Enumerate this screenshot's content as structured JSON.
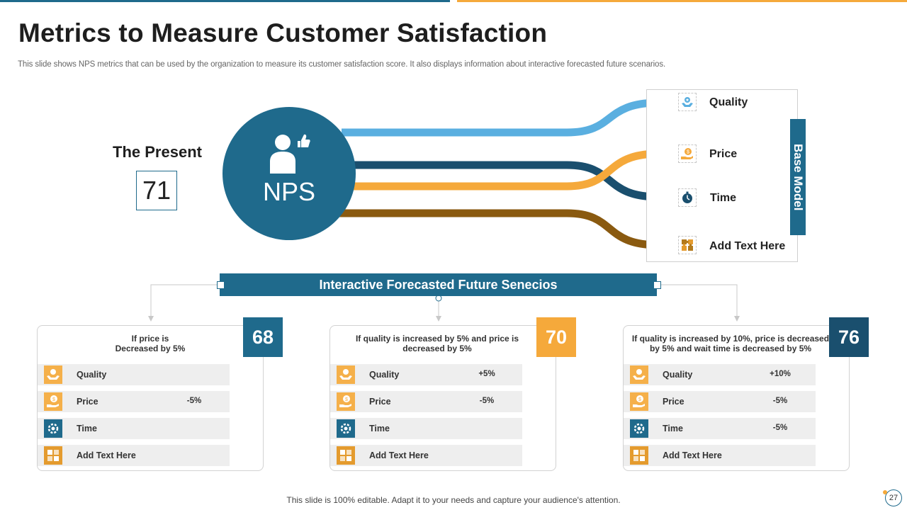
{
  "title": "Metrics to Measure Customer Satisfaction",
  "subtitle": "This slide shows NPS metrics that can be used by the organization to measure its customer satisfaction score. It also displays information about interactive forecasted future scenarios.",
  "present": {
    "label": "The Present",
    "value": "71"
  },
  "nps": {
    "label": "NPS"
  },
  "base_model": {
    "title": "Base Model",
    "items": [
      {
        "label": "Quality",
        "icon": "quality-icon",
        "color": "#5aafe0"
      },
      {
        "label": "Price",
        "icon": "price-icon",
        "color": "#f5a93b"
      },
      {
        "label": "Time",
        "icon": "time-icon",
        "color": "#1a4f6e"
      },
      {
        "label": "Add  Text Here",
        "icon": "puzzle-icon",
        "color": "#8a5a10"
      }
    ]
  },
  "forecast_title": "Interactive Forecasted Future Senecios",
  "scenarios": [
    {
      "condition": "If price is\nDecreased by 5%",
      "score": "68",
      "score_color": "#1f6a8c",
      "rows": [
        {
          "label": "Quality",
          "value": ""
        },
        {
          "label": "Price",
          "value": "-5%"
        },
        {
          "label": "Time",
          "value": ""
        },
        {
          "label": "Add  Text Here",
          "value": ""
        }
      ]
    },
    {
      "condition": "If quality  is increased by  5%  and price is\ndecreased by 5%",
      "score": "70",
      "score_color": "#f5a93b",
      "rows": [
        {
          "label": "Quality",
          "value": "+5%"
        },
        {
          "label": "Price",
          "value": "-5%"
        },
        {
          "label": "Time",
          "value": ""
        },
        {
          "label": "Add  Text Here",
          "value": ""
        }
      ]
    },
    {
      "condition": "If quality  is increased by  10%, price is decreased\nby 5%  and  wait time is decreased by 5%",
      "score": "76",
      "score_color": "#1a4f6e",
      "rows": [
        {
          "label": "Quality",
          "value": "+10%"
        },
        {
          "label": "Price",
          "value": "-5%"
        },
        {
          "label": "Time",
          "value": "-5%"
        },
        {
          "label": "Add  Text Here",
          "value": ""
        }
      ]
    }
  ],
  "footer": "This slide is 100% editable. Adapt it to your needs and capture your audience's attention.",
  "page_number": "27",
  "colors": {
    "primary": "#1f6a8c",
    "accent": "#f5a93b",
    "dark": "#1a4f6e",
    "brown": "#8a5a10",
    "light_blue": "#5aafe0"
  }
}
